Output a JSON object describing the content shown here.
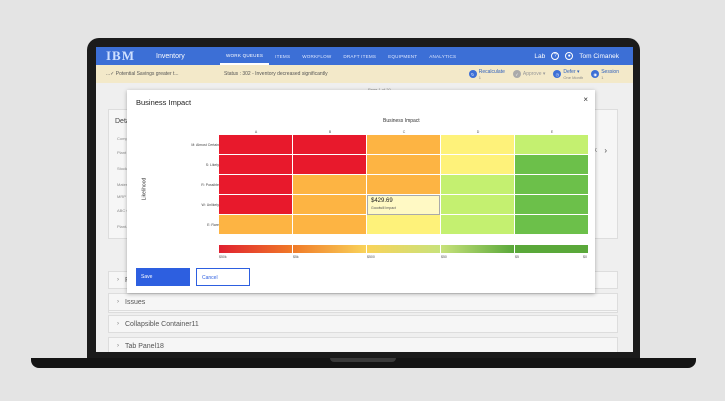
{
  "header": {
    "logo": "IBM",
    "app_name": "Inventory",
    "nav": [
      "WORK QUEUES",
      "ITEMS",
      "WORKFLOW",
      "DRAFT ITEMS",
      "EQUIPMENT",
      "ANALYTICS"
    ],
    "site": "Lab",
    "user": "Tom Cimanek"
  },
  "alert": {
    "left_text": "...✓ Potential Savings greater t...",
    "status_text": "Status : 302 - Inventory decreased significantly",
    "actions": [
      {
        "label": "Recalculate",
        "sub": "1"
      },
      {
        "label": "Approve ▾",
        "sub": ""
      },
      {
        "label": "Defer ▾",
        "sub": "One Month"
      },
      {
        "label": "Session",
        "sub": "1"
      }
    ]
  },
  "page": {
    "page_indicator": "Page 1 of 20",
    "details_title": "Detai",
    "detail_labels": [
      "Compa",
      "Plant",
      "Stock",
      "Materi",
      "MRP Type",
      "ABC Class",
      "Plant-S"
    ],
    "right_label": "K",
    "collapsibles": [
      {
        "label": "U"
      },
      {
        "label": "R"
      },
      {
        "label": "Issues"
      },
      {
        "label": "Collapsible Container11"
      },
      {
        "label": "Tab Panel18"
      }
    ]
  },
  "modal": {
    "title": "Business Impact",
    "close": "×",
    "save_label": "Save",
    "cancel_label": "Cancel",
    "tooltip_value": "$429.69",
    "tooltip_label": "Goodwill Impact"
  },
  "chart_data": {
    "type": "heatmap",
    "title": "Business Impact",
    "xlabel": "",
    "ylabel": "Likelihood",
    "columns": [
      "A",
      "B",
      "C",
      "D",
      "E"
    ],
    "rows": [
      "M: Almost Certain",
      "S: Likely",
      "R: Possible",
      "W: Unlikely",
      "E: Rare"
    ],
    "colors": [
      [
        "#e8192c",
        "#e8192c",
        "#fdb443",
        "#fef27a",
        "#c4f070"
      ],
      [
        "#e8192c",
        "#e8192c",
        "#fdb443",
        "#fef27a",
        "#6cc04a"
      ],
      [
        "#e8192c",
        "#fdb443",
        "#fdb443",
        "#c4f070",
        "#6cc04a"
      ],
      [
        "#e8192c",
        "#fdb443",
        "#fef27a",
        "#c4f070",
        "#6cc04a"
      ],
      [
        "#fdb443",
        "#fdb443",
        "#fef27a",
        "#c4f070",
        "#6cc04a"
      ]
    ],
    "legend_colors": [
      "#e02030",
      "#f07a28",
      "#f9d35a",
      "#c8e27b",
      "#5aa83a"
    ],
    "legend_labels": [
      "$50k",
      "$5k",
      "$500",
      "$50",
      "$5",
      "$0"
    ]
  }
}
